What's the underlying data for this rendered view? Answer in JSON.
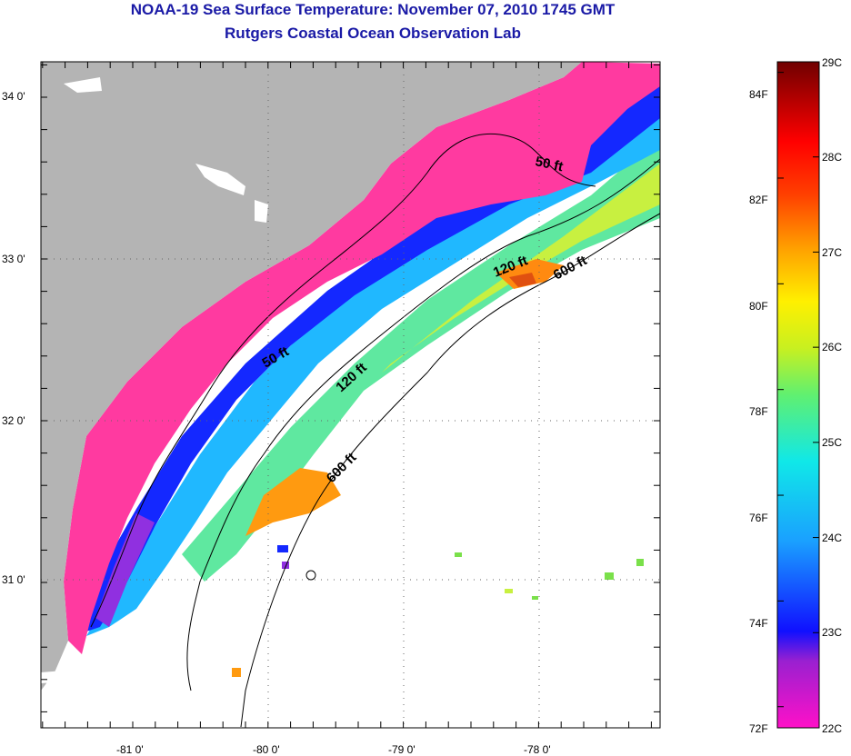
{
  "title": {
    "line1": "NOAA-19 Sea Surface Temperature:  November 07, 2010 1745 GMT",
    "line2": "Rutgers Coastal Ocean Observation Lab"
  },
  "map": {
    "lat_labels": [
      "34 0'",
      "33 0'",
      "32 0'",
      "31 0'"
    ],
    "lon_labels": [
      "-81 0'",
      "-80 0'",
      "-79 0'",
      "-78 0'"
    ],
    "contour_labels": [
      "50 ft",
      "50 ft",
      "120 ft",
      "120 ft",
      "600 ft",
      "600 ft"
    ],
    "colors": {
      "land": "#b4b4b4",
      "nearshore_pink": "#ff3aa0",
      "cold_blue": "#1428ff",
      "cloud": "#ffffff"
    }
  },
  "colorbar": {
    "fahrenheit_labels": [
      "84F",
      "82F",
      "80F",
      "78F",
      "76F",
      "74F",
      "72F"
    ],
    "celsius_labels": [
      "29C",
      "28C",
      "27C",
      "26C",
      "25C",
      "24C",
      "23C",
      "22C"
    ],
    "range_c": [
      22,
      29
    ],
    "range_f": [
      72,
      84
    ]
  }
}
